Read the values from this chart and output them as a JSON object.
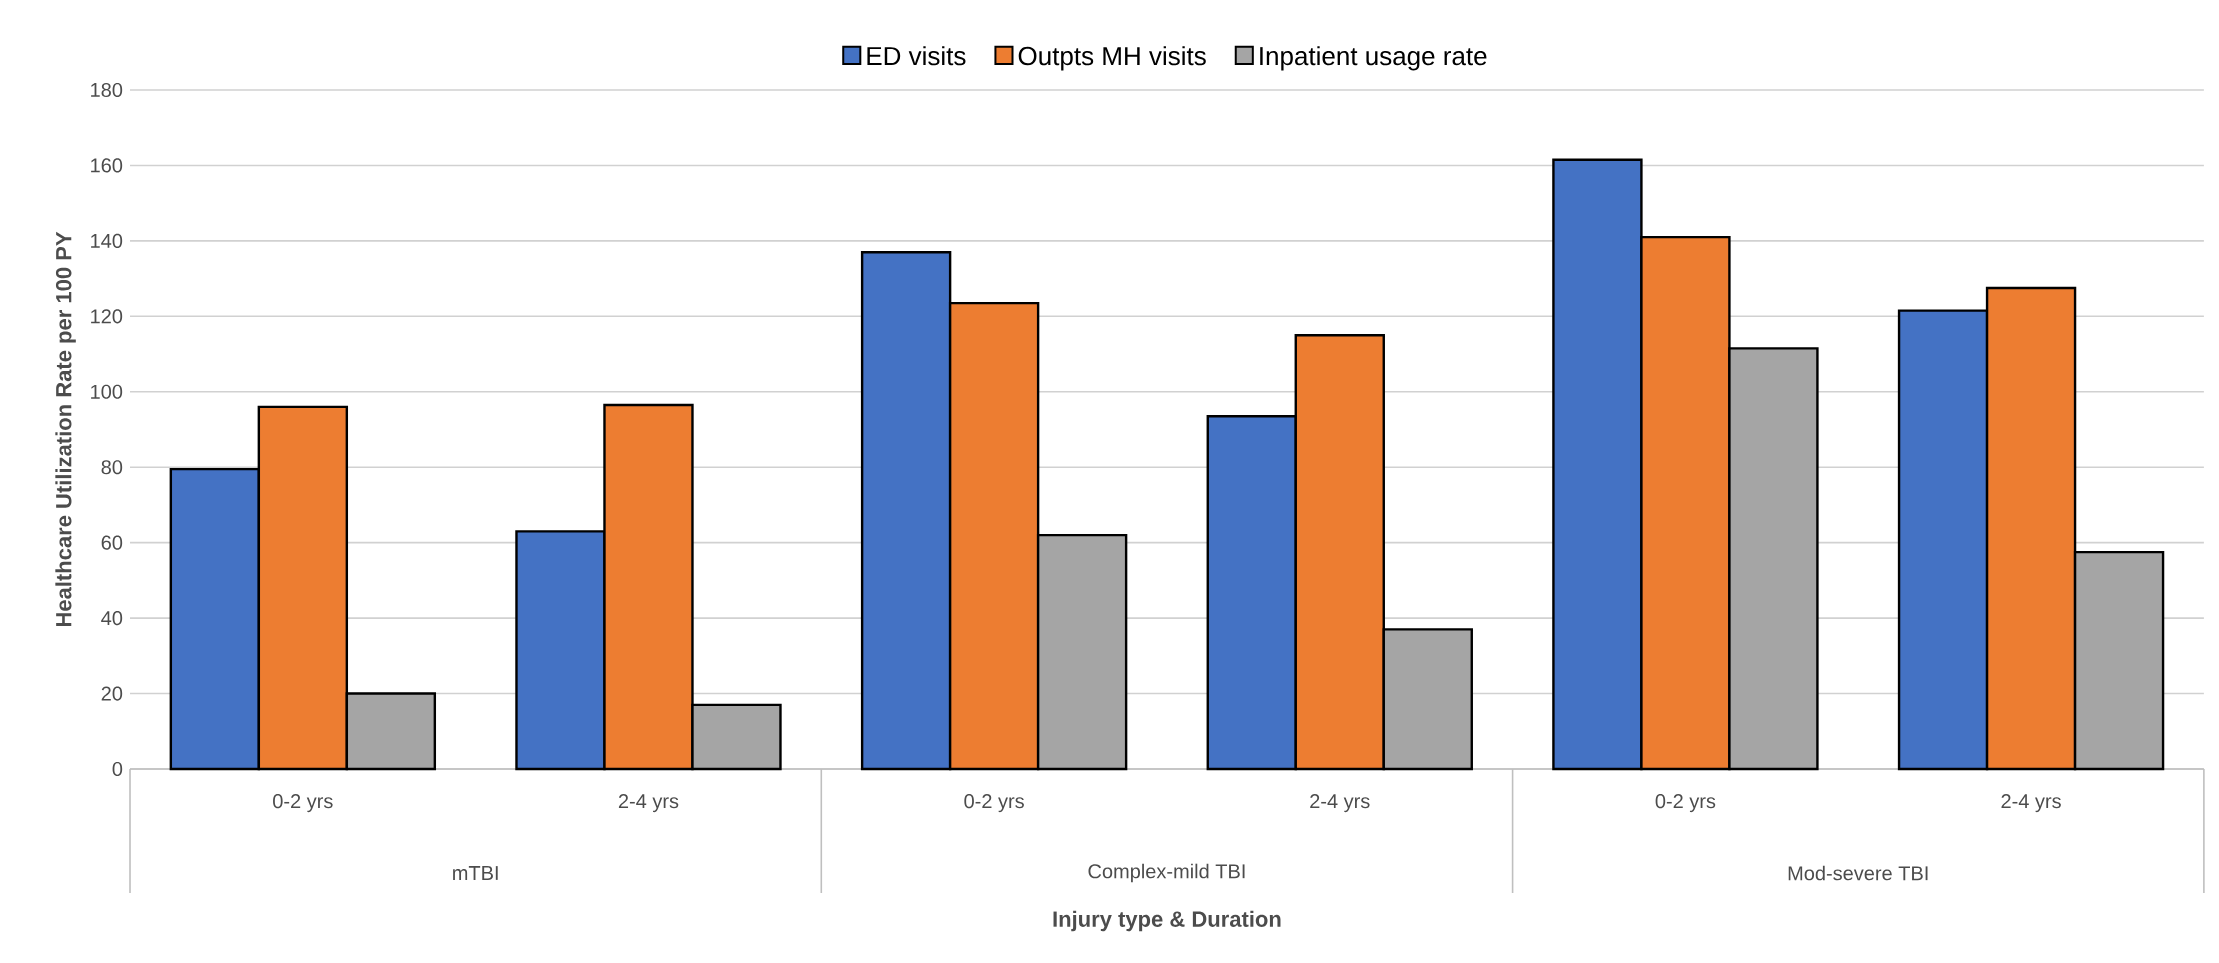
{
  "chart_data": {
    "type": "bar",
    "xlabel": "Injury type & Duration",
    "ylabel": "Healthcare Utilization Rate per 100 PY",
    "categories": [
      "0-2 yrs",
      "2-4 yrs",
      "0-2 yrs",
      "2-4 yrs",
      "0-2 yrs",
      "2-4 yrs"
    ],
    "annotations": [
      "mTBI",
      "Complex-mild TBI",
      "Mod-severe TBI"
    ],
    "series": [
      {
        "name": "ED visits",
        "color": "#4472c4",
        "values": [
          79.5,
          63,
          137,
          93.5,
          161.5,
          121.5
        ]
      },
      {
        "name": "Outpts MH visits",
        "color": "#ed7d31",
        "values": [
          96,
          96.5,
          123.5,
          115,
          141,
          127.5
        ]
      },
      {
        "name": "Inpatient usage rate",
        "color": "#a5a5a5",
        "values": [
          20,
          17,
          62,
          37,
          111.5,
          57.5
        ]
      }
    ],
    "ylim": [
      0,
      180
    ],
    "yticks": [
      0,
      20,
      40,
      60,
      80,
      100,
      120,
      140,
      160,
      180
    ],
    "grid": "y",
    "legend": "top"
  }
}
